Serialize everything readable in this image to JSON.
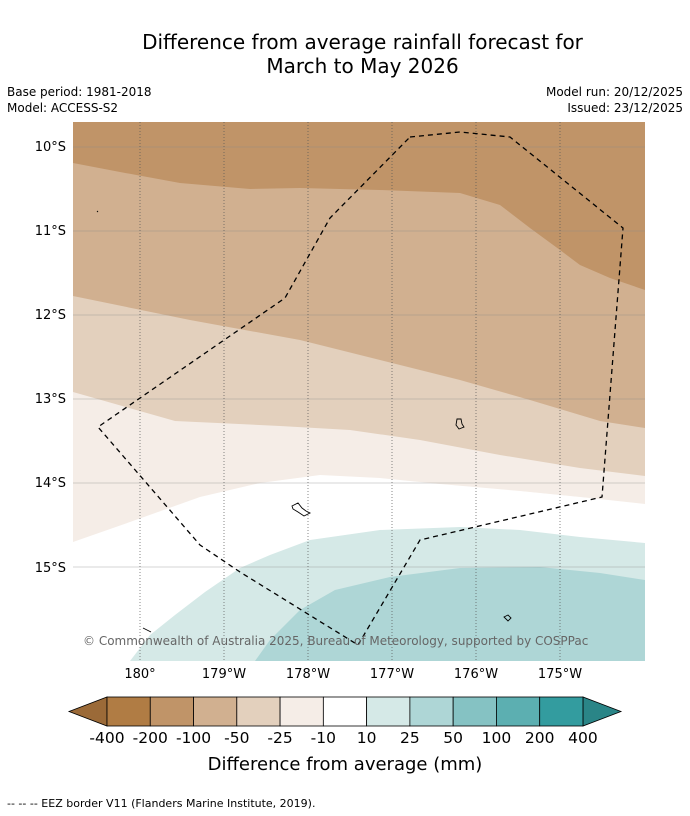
{
  "title_line1": "Difference from average rainfall forecast for",
  "title_line2": "March to May 2026",
  "base_period": "Base period: 1981-2018",
  "model": "Model: ACCESS-S2",
  "model_run": "Model run: 20/12/2025",
  "issued": "Issued: 23/12/2025",
  "lat_labels": [
    "10°S",
    "11°S",
    "12°S",
    "13°S",
    "14°S",
    "15°S"
  ],
  "lon_labels": [
    "180°",
    "179°W",
    "178°W",
    "177°W",
    "176°W",
    "175°W"
  ],
  "copyright": "© Commonwealth of Australia 2025, Bureau of Meteorology, supported by COSPPac",
  "colorbar": {
    "title": "Difference from average (mm)",
    "labels": [
      "-400",
      "-200",
      "-100",
      "-50",
      "-25",
      "-10",
      "10",
      "25",
      "50",
      "100",
      "200",
      "400"
    ],
    "colors": [
      "#b07c44",
      "#c09468",
      "#d1b090",
      "#e3d0bd",
      "#f5ede7",
      "#ffffff",
      "#d5e9e7",
      "#aed6d6",
      "#85c2c3",
      "#5cafb1",
      "#339c9f"
    ],
    "under_color": "#9b6a38",
    "over_color": "#2a8587"
  },
  "footnote": "--  --  -- EEZ border V11 (Flanders Marine Institute, 2019)."
}
